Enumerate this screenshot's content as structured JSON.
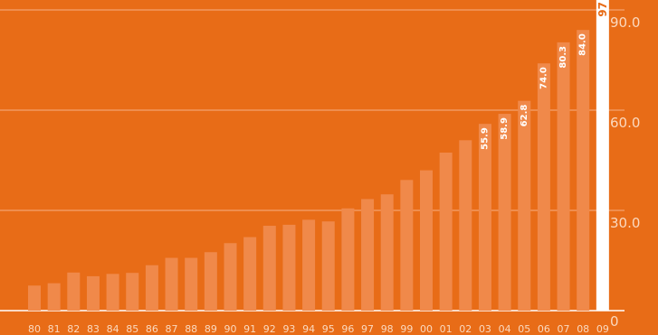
{
  "chart_data": {
    "type": "bar",
    "title": "",
    "xlabel": "",
    "ylabel": "",
    "ylim": [
      0,
      97.5
    ],
    "grid": true,
    "categories": [
      "80",
      "81",
      "82",
      "83",
      "84",
      "85",
      "86",
      "87",
      "88",
      "89",
      "90",
      "91",
      "92",
      "93",
      "94",
      "95",
      "96",
      "97",
      "98",
      "99",
      "00",
      "01",
      "02",
      "03",
      "04",
      "05",
      "06",
      "07",
      "08",
      "09"
    ],
    "values": [
      7.5,
      8.2,
      11.4,
      10.3,
      11.0,
      11.3,
      13.6,
      15.8,
      15.8,
      17.5,
      20.2,
      22.0,
      25.4,
      25.7,
      27.2,
      26.7,
      30.6,
      33.4,
      34.8,
      39.1,
      42.0,
      47.3,
      51.0,
      55.9,
      58.9,
      62.8,
      74.0,
      80.3,
      84.0,
      97
    ],
    "value_labels": [
      "",
      "",
      "",
      "",
      "",
      "",
      "",
      "",
      "",
      "",
      "",
      "",
      "",
      "",
      "",
      "",
      "",
      "",
      "",
      "",
      "",
      "",
      "",
      "55.9",
      "58.9",
      "62.8",
      "74.0",
      "80.3",
      "84.0",
      "97"
    ],
    "highlight_index": 29,
    "y_ticks": [
      {
        "value": 0,
        "label": "0"
      },
      {
        "value": 30,
        "label": "30.0"
      },
      {
        "value": 60,
        "label": "60.0"
      },
      {
        "value": 90,
        "label": "90.0"
      }
    ],
    "colors": {
      "background": "#E86C17",
      "bar": "#F0894A",
      "highlight_bar": "#FFFFFF",
      "grid": "#F6B184",
      "tick_text": "#FBD9BF"
    }
  }
}
